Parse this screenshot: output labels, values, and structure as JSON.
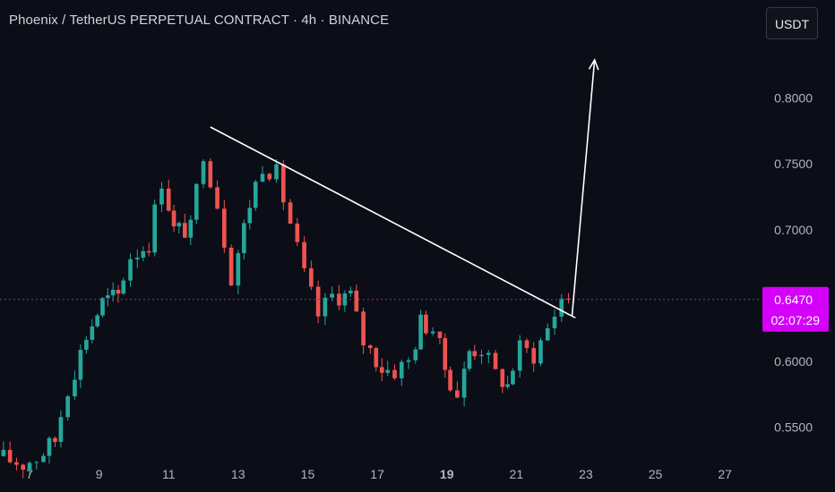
{
  "header": {
    "title": "Phoenix / TetherUS PERPETUAL CONTRACT · 4h · BINANCE",
    "currency_button": "USDT"
  },
  "colors": {
    "background": "#0b0d17",
    "up": "#26a69a",
    "down": "#ef5350",
    "current_price_line": "#9c27b0",
    "price_tag": "#d500f9",
    "annotation": "#ffffff"
  },
  "chart_data": {
    "type": "candlestick",
    "title": "Phoenix / TetherUS PERPETUAL CONTRACT · 4h · BINANCE",
    "xlabel": "",
    "ylabel": "",
    "x_ticks": [
      {
        "label": "7",
        "day": 7
      },
      {
        "label": "9",
        "day": 9
      },
      {
        "label": "11",
        "day": 11
      },
      {
        "label": "13",
        "day": 13
      },
      {
        "label": "15",
        "day": 15
      },
      {
        "label": "17",
        "day": 17
      },
      {
        "label": "19",
        "day": 19,
        "bold": true
      },
      {
        "label": "21",
        "day": 21
      },
      {
        "label": "23",
        "day": 23
      },
      {
        "label": "25",
        "day": 25
      },
      {
        "label": "27",
        "day": 27
      }
    ],
    "y_ticks": [
      {
        "label": "0.8000",
        "value": 0.8
      },
      {
        "label": "0.7500",
        "value": 0.75
      },
      {
        "label": "0.7000",
        "value": 0.7
      },
      {
        "label": "0.6000",
        "value": 0.6
      },
      {
        "label": "0.5500",
        "value": 0.55
      }
    ],
    "ylim": [
      0.5245,
      0.8745
    ],
    "xlim": [
      6.15,
      28.0
    ],
    "grid": false,
    "candle_interval_days": 0.1667,
    "current_price": {
      "label": "0.6470",
      "value": 0.647,
      "countdown": "02:07:29"
    },
    "path": [
      [
        6.25,
        0.528
      ],
      [
        7.0,
        0.522
      ],
      [
        7.4,
        0.527
      ],
      [
        7.9,
        0.54
      ],
      [
        8.3,
        0.58
      ],
      [
        8.8,
        0.62
      ],
      [
        9.25,
        0.645
      ],
      [
        9.7,
        0.65
      ],
      [
        10.1,
        0.68
      ],
      [
        10.6,
        0.69
      ],
      [
        11.0,
        0.738
      ],
      [
        11.3,
        0.7
      ],
      [
        11.8,
        0.7
      ],
      [
        12.2,
        0.76
      ],
      [
        12.6,
        0.72
      ],
      [
        13.0,
        0.665
      ],
      [
        13.5,
        0.72
      ],
      [
        13.9,
        0.75
      ],
      [
        14.3,
        0.742
      ],
      [
        14.7,
        0.705
      ],
      [
        15.1,
        0.665
      ],
      [
        15.5,
        0.635
      ],
      [
        15.9,
        0.65
      ],
      [
        16.4,
        0.65
      ],
      [
        16.8,
        0.615
      ],
      [
        17.3,
        0.595
      ],
      [
        17.7,
        0.593
      ],
      [
        18.1,
        0.6
      ],
      [
        18.4,
        0.63
      ],
      [
        18.8,
        0.625
      ],
      [
        19.1,
        0.595
      ],
      [
        19.5,
        0.575
      ],
      [
        19.8,
        0.608
      ],
      [
        20.2,
        0.61
      ],
      [
        20.6,
        0.59
      ],
      [
        20.9,
        0.582
      ],
      [
        21.3,
        0.61
      ],
      [
        21.7,
        0.605
      ],
      [
        22.1,
        0.625
      ],
      [
        22.5,
        0.648
      ]
    ],
    "annotations": {
      "trendline": {
        "x1": 12.2,
        "y1": 0.778,
        "x2": 22.7,
        "y2": 0.633
      },
      "arrow": {
        "x1": 22.6,
        "y1": 0.634,
        "x2": 23.25,
        "y2": 0.829
      }
    }
  }
}
